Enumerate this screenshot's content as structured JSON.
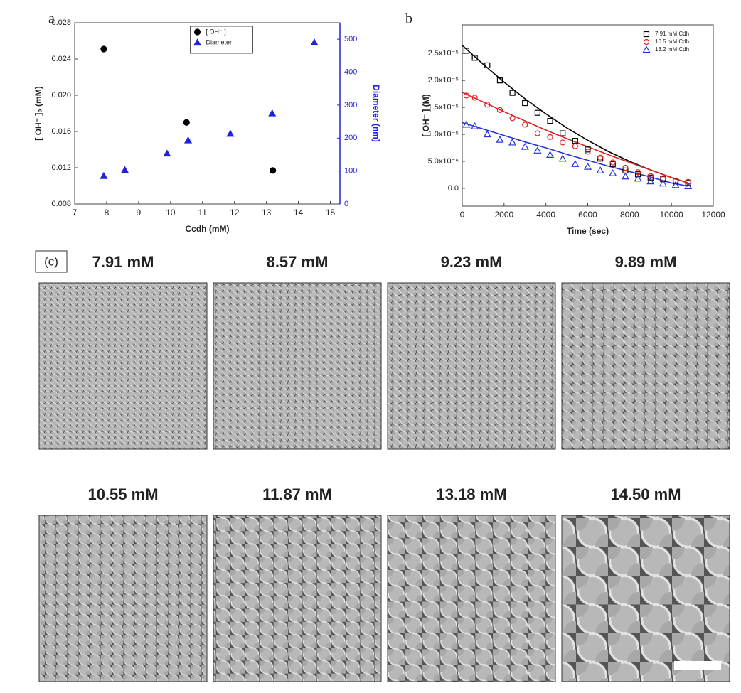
{
  "chart_data": [
    {
      "type": "scatter",
      "panel_label": "a",
      "xlabel": "Ccdh (mM)",
      "ylabel": "[ OH⁻ ]₀ (mM)",
      "y2label": "Diameter (nm)",
      "xlim": [
        7,
        15.3
      ],
      "xticks": [
        7,
        8,
        9,
        10,
        11,
        12,
        13,
        14,
        15
      ],
      "ylim": [
        0.008,
        0.028
      ],
      "yticks": [
        0.008,
        0.012,
        0.016,
        {
          "value": 0.02,
          "label": "0.020"
        },
        0.024,
        0.028
      ],
      "y2lim": [
        0,
        550
      ],
      "y2ticks": [
        0,
        100,
        200,
        300,
        400,
        500
      ],
      "y2color": "#2222dd",
      "legend": "upper center",
      "series": [
        {
          "name": "[ OH⁻ ]",
          "color": "#000000",
          "marker": "circle",
          "filled": true,
          "x": [
            7.91,
            10.5,
            13.2
          ],
          "values": [
            0.0251,
            0.017,
            0.0117
          ]
        },
        {
          "name": "Diameter",
          "color": "#2222dd",
          "marker": "triangle",
          "filled": true,
          "axis": "y2",
          "x": [
            7.91,
            8.57,
            9.89,
            10.55,
            11.87,
            13.18,
            14.5
          ],
          "values": [
            85,
            103,
            153,
            193,
            213,
            275,
            490
          ]
        }
      ]
    },
    {
      "type": "scatter",
      "panel_label": "b",
      "xlabel": "Time (sec)",
      "ylabel": "[ OH⁻ ] (M)",
      "xlim": [
        0,
        12000
      ],
      "xticks": [
        0,
        2000,
        4000,
        6000,
        8000,
        10000,
        12000
      ],
      "ylim": [
        -3.3e-06,
        3.03e-05
      ],
      "yticks": [
        {
          "value": 0,
          "label": "0.0"
        },
        {
          "value": 5e-06,
          "label": "5.0x10⁻⁶"
        },
        {
          "value": 1e-05,
          "label": "1.0x10⁻⁵"
        },
        {
          "value": 1.5e-05,
          "label": "1.5x10⁻⁵"
        },
        {
          "value": 2e-05,
          "label": "2.0x10⁻⁵"
        },
        {
          "value": 2.5e-05,
          "label": "2.5x10⁻⁵"
        }
      ],
      "legend": "upper right",
      "x": [
        200,
        600,
        1200,
        1800,
        2400,
        3000,
        3600,
        4200,
        4800,
        5400,
        6000,
        6600,
        7200,
        7800,
        8400,
        9000,
        9600,
        10200,
        10800
      ],
      "series": [
        {
          "name": "7.91 mM Cdh",
          "color": "#000000",
          "marker": "square",
          "filled": false,
          "values": [
            2.55e-05,
            2.42e-05,
            2.28e-05,
            2e-05,
            1.77e-05,
            1.58e-05,
            1.4e-05,
            1.25e-05,
            1.02e-05,
            8.8e-06,
            7.2e-06,
            5.5e-06,
            4.5e-06,
            3.3e-06,
            2.6e-06,
            2e-06,
            1.7e-06,
            1.3e-06,
            1e-06
          ]
        },
        {
          "name": "10.5 mM Cdh",
          "color": "#e02020",
          "marker": "circle",
          "filled": false,
          "values": [
            1.72e-05,
            1.68e-05,
            1.55e-05,
            1.45e-05,
            1.3e-05,
            1.18e-05,
            1.02e-05,
            9.5e-06,
            8.5e-06,
            7.8e-06,
            6.8e-06,
            5.7e-06,
            4.8e-06,
            3.8e-06,
            3e-06,
            2.3e-06,
            1.8e-06,
            1.4e-06,
            1.2e-06
          ]
        },
        {
          "name": "13.2 mM Cdh",
          "color": "#2233dd",
          "marker": "triangle",
          "filled": false,
          "values": [
            1.18e-05,
            1.15e-05,
            1e-05,
            9e-06,
            8.5e-06,
            7.7e-06,
            7e-06,
            6.2e-06,
            5.5e-06,
            4.5e-06,
            4e-06,
            3.3e-06,
            2.8e-06,
            2.2e-06,
            1.8e-06,
            1.3e-06,
            9e-07,
            6e-07,
            4e-07
          ]
        }
      ],
      "fit_x": [
        0,
        1000,
        2000,
        3000,
        4000,
        5000,
        6000,
        7000,
        8000,
        9000,
        10000,
        10800
      ],
      "fits": [
        {
          "color": "#000000",
          "values": [
            2.65e-05,
            2.3e-05,
            1.97e-05,
            1.66e-05,
            1.38e-05,
            1.12e-05,
            8.9e-06,
            6.8e-06,
            5e-06,
            3.4e-06,
            2e-06,
            1e-06
          ]
        },
        {
          "color": "#e02020",
          "values": [
            1.78e-05,
            1.6e-05,
            1.42e-05,
            1.25e-05,
            1.08e-05,
            9.2e-06,
            7.7e-06,
            6.2e-06,
            4.8e-06,
            3.4e-06,
            2e-06,
            1e-06
          ]
        },
        {
          "color": "#2233dd",
          "values": [
            1.22e-05,
            1.1e-05,
            9.8e-06,
            8.6e-06,
            7.5e-06,
            6.3e-06,
            5.2e-06,
            4.1e-06,
            3.1e-06,
            2.1e-06,
            1e-06,
            4e-07
          ]
        }
      ]
    }
  ],
  "sem_panel": {
    "label": "(c)",
    "images": [
      {
        "label": "7.91 mM"
      },
      {
        "label": "8.57 mM"
      },
      {
        "label": "9.23 mM"
      },
      {
        "label": "9.89 mM"
      },
      {
        "label": "10.55 mM"
      },
      {
        "label": "11.87 mM"
      },
      {
        "label": "13.18 mM"
      },
      {
        "label": "14.50 mM"
      }
    ]
  }
}
